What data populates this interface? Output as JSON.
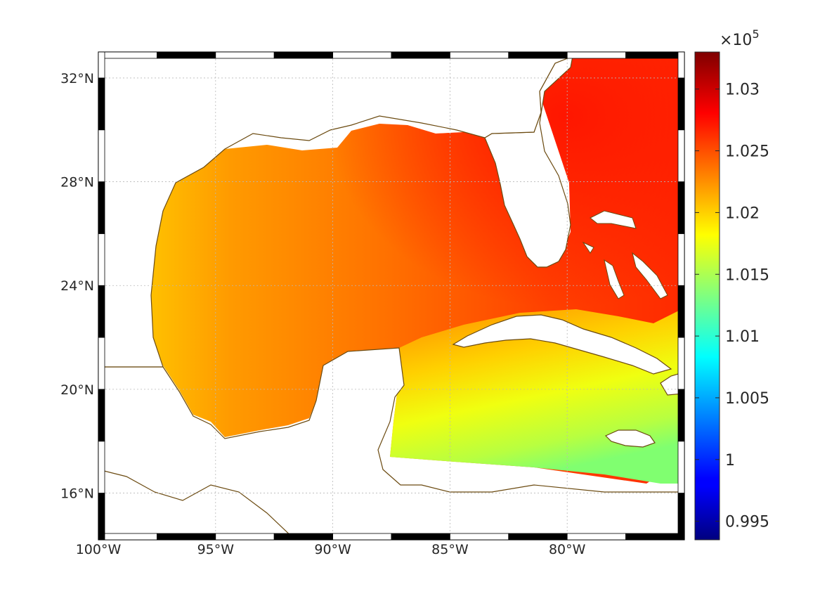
{
  "map": {
    "lon_range": [
      -100,
      -75
    ],
    "lat_range": [
      14.2,
      33
    ],
    "lon_ticks": [
      {
        "value": -100,
        "label": "100°W"
      },
      {
        "value": -95,
        "label": "95°W"
      },
      {
        "value": -90,
        "label": "90°W"
      },
      {
        "value": -85,
        "label": "85°W"
      },
      {
        "value": -80,
        "label": "80°W"
      }
    ],
    "lat_ticks": [
      {
        "value": 32,
        "label": "32°N"
      },
      {
        "value": 28,
        "label": "28°N"
      },
      {
        "value": 24,
        "label": "24°N"
      },
      {
        "value": 20,
        "label": "20°N"
      },
      {
        "value": 16,
        "label": "16°N"
      }
    ],
    "grid": true,
    "frame": "alternating black-white border",
    "land_color": "#ffffff",
    "coastline_color": "#6b4a10",
    "field": "sea level pressure",
    "field_summary": {
      "gulf_northeast": 102800,
      "gulf_west_coast": 102100,
      "gulf_central": 102450,
      "atlantic_off_florida": 102950,
      "caribbean_north": 102000,
      "caribbean_southeast": 101600
    }
  },
  "colorbar": {
    "colormap": "jet",
    "range": [
      99350,
      103300
    ],
    "multiplier_base": "×10",
    "multiplier_exp": "5",
    "ticks": [
      {
        "value": 103000,
        "label": "1.03"
      },
      {
        "value": 102500,
        "label": "1.025"
      },
      {
        "value": 102000,
        "label": "1.02"
      },
      {
        "value": 101500,
        "label": "1.015"
      },
      {
        "value": 101000,
        "label": "1.01"
      },
      {
        "value": 100500,
        "label": "1.005"
      },
      {
        "value": 100000,
        "label": "1"
      },
      {
        "value": 99500,
        "label": "0.995"
      }
    ]
  }
}
